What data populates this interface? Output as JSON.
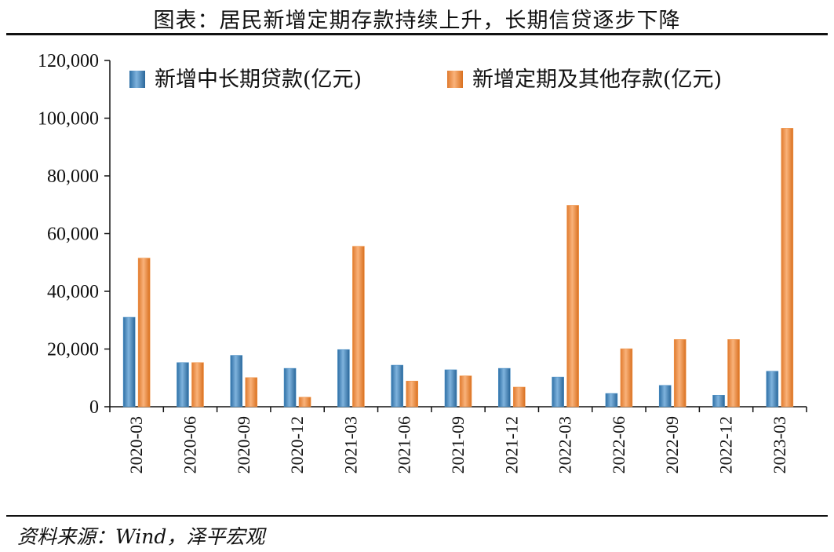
{
  "title": "图表：居民新增定期存款持续上升，长期信贷逐步下降",
  "source": "资料来源：Wind，泽平宏观",
  "chart_data": {
    "type": "bar",
    "categories": [
      "2020-03",
      "2020-06",
      "2020-09",
      "2020-12",
      "2021-03",
      "2021-06",
      "2021-09",
      "2021-12",
      "2022-03",
      "2022-06",
      "2022-09",
      "2022-12",
      "2023-03"
    ],
    "series": [
      {
        "name": "新增中长期贷款(亿元)",
        "color": "#4a8ec4",
        "values": [
          31000,
          15300,
          17800,
          13300,
          19800,
          14400,
          12800,
          13300,
          10300,
          4600,
          7400,
          4000,
          12300
        ]
      },
      {
        "name": "新增定期及其他存款(亿元)",
        "color": "#f0954a",
        "values": [
          51500,
          15300,
          10100,
          3300,
          55600,
          8900,
          10700,
          6800,
          69800,
          20100,
          23300,
          23300,
          96500
        ]
      }
    ],
    "ylim": [
      0,
      120000
    ],
    "yticks": [
      "0",
      "20,000",
      "40,000",
      "60,000",
      "80,000",
      "100,000",
      "120,000"
    ],
    "legend_position": "top"
  }
}
